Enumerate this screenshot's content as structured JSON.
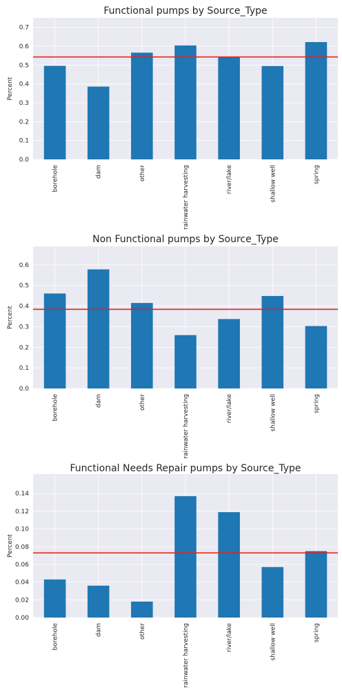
{
  "figure": {
    "background": "#ffffff",
    "axes_face": "#eaeaf2",
    "grid": "#ffffff",
    "bar_color": "#1f77b4",
    "ref_line_color": "#e8211b"
  },
  "chart_data": [
    {
      "type": "bar",
      "title": "Functional pumps by Source_Type",
      "xlabel": "",
      "ylabel": "Percent",
      "categories": [
        "borehole",
        "dam",
        "other",
        "rainwater harvesting",
        "river/lake",
        "shallow well",
        "spring"
      ],
      "values": [
        0.496,
        0.386,
        0.566,
        0.604,
        0.544,
        0.495,
        0.622
      ],
      "reference_line": 0.543,
      "ylim": [
        0,
        0.75
      ],
      "yticks": [
        0.0,
        0.1,
        0.2,
        0.3,
        0.4,
        0.5,
        0.6,
        0.7
      ],
      "ytick_labels": [
        "0.0",
        "0.1",
        "0.2",
        "0.3",
        "0.4",
        "0.5",
        "0.6",
        "0.7"
      ],
      "grid": true,
      "legend": "none"
    },
    {
      "type": "bar",
      "title": "Non Functional pumps by Source_Type",
      "xlabel": "",
      "ylabel": "Percent",
      "categories": [
        "borehole",
        "dam",
        "other",
        "rainwater harvesting",
        "river/lake",
        "shallow well",
        "spring"
      ],
      "values": [
        0.461,
        0.578,
        0.415,
        0.259,
        0.337,
        0.449,
        0.303
      ],
      "reference_line": 0.384,
      "ylim": [
        0,
        0.69
      ],
      "yticks": [
        0.0,
        0.1,
        0.2,
        0.3,
        0.4,
        0.5,
        0.6
      ],
      "ytick_labels": [
        "0.0",
        "0.1",
        "0.2",
        "0.3",
        "0.4",
        "0.5",
        "0.6"
      ],
      "grid": true,
      "legend": "none"
    },
    {
      "type": "bar",
      "title": "Functional Needs Repair pumps by Source_Type",
      "xlabel": "",
      "ylabel": "Percent",
      "categories": [
        "borehole",
        "dam",
        "other",
        "rainwater harvesting",
        "river/lake",
        "shallow well",
        "spring"
      ],
      "values": [
        0.043,
        0.036,
        0.018,
        0.137,
        0.119,
        0.057,
        0.075
      ],
      "reference_line": 0.073,
      "ylim": [
        0,
        0.162
      ],
      "yticks": [
        0.0,
        0.02,
        0.04,
        0.06,
        0.08,
        0.1,
        0.12,
        0.14
      ],
      "ytick_labels": [
        "0.00",
        "0.02",
        "0.04",
        "0.06",
        "0.08",
        "0.10",
        "0.12",
        "0.14"
      ],
      "grid": true,
      "legend": "none"
    }
  ]
}
